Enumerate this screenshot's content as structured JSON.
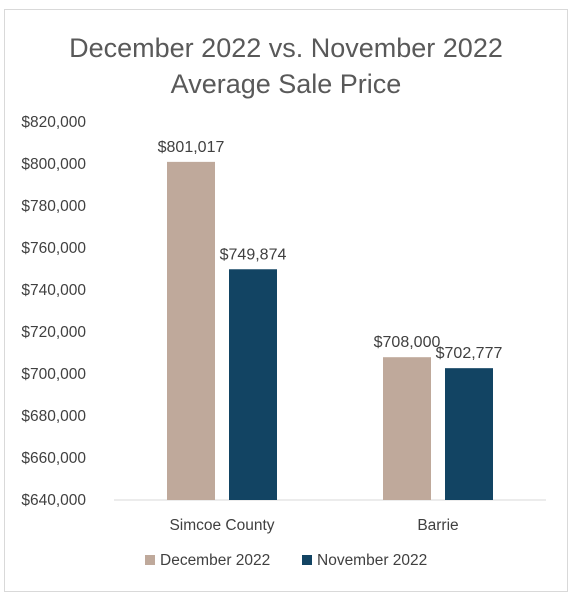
{
  "chart_data": {
    "type": "bar",
    "title_lines": [
      "December 2022 vs. November 2022",
      "Average Sale Price"
    ],
    "categories": [
      "Simcoe County",
      "Barrie"
    ],
    "series": [
      {
        "name": "December 2022",
        "color": "#bfa99b",
        "values": [
          801017,
          708000
        ],
        "labels": [
          "$801,017",
          "$708,000"
        ]
      },
      {
        "name": "November 2022",
        "color": "#124463",
        "values": [
          749874,
          702777
        ],
        "labels": [
          "$749,874",
          "$702,777"
        ]
      }
    ],
    "ylim": [
      640000,
      820000
    ],
    "yticks": [
      640000,
      660000,
      680000,
      700000,
      720000,
      740000,
      760000,
      780000,
      800000,
      820000
    ],
    "ytick_labels": [
      "$640,000",
      "$660,000",
      "$680,000",
      "$700,000",
      "$720,000",
      "$740,000",
      "$760,000",
      "$780,000",
      "$800,000",
      "$820,000"
    ],
    "grid": false,
    "legend_position": "bottom"
  }
}
